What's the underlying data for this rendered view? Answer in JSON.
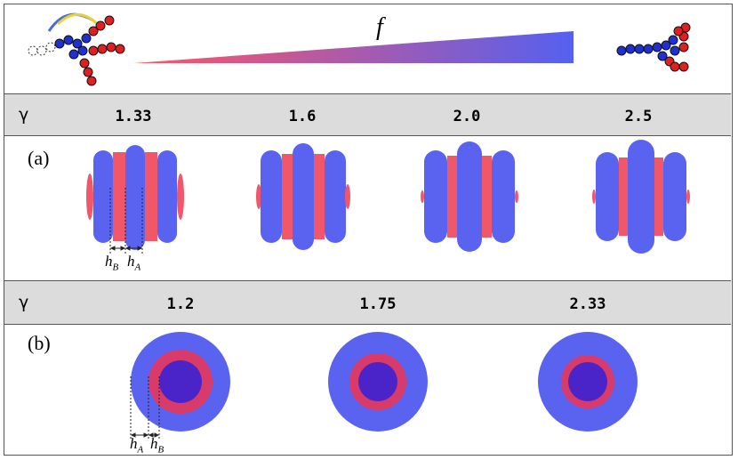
{
  "header": {
    "gradient_label": "f",
    "colors": {
      "start": "#ff5566",
      "end": "#5560f0"
    }
  },
  "colors": {
    "block_a": "#5a63f0",
    "block_b": "#f0586a",
    "core": "#4a24c8",
    "ring": "#d83a6a"
  },
  "panel_a": {
    "label": "(a)",
    "gamma_symbol": "γ",
    "gammas": [
      "1.33",
      "1.6",
      "2.0",
      "2.5"
    ],
    "thickness_labels": {
      "hB": "h",
      "hB_sub": "B",
      "hA": "h",
      "hA_sub": "A"
    }
  },
  "panel_b": {
    "label": "(b)",
    "gamma_symbol": "γ",
    "gammas": [
      "1.2",
      "1.75",
      "2.33"
    ],
    "thickness_labels": {
      "hA": "h",
      "hA_sub": "A",
      "hB": "h",
      "hB_sub": "B"
    }
  }
}
